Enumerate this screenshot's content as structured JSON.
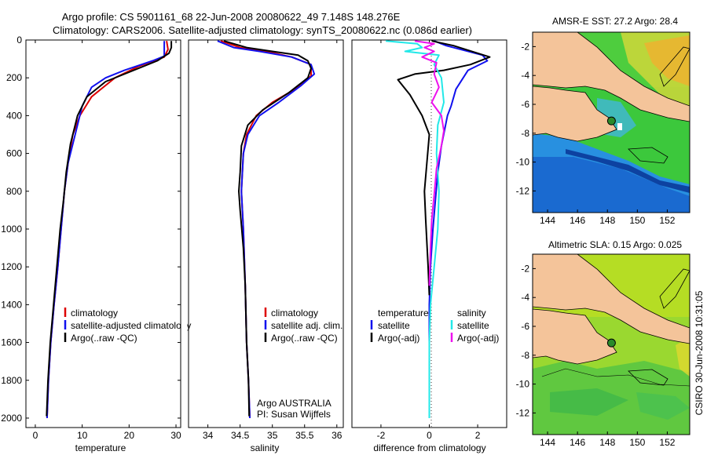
{
  "header": {
    "title_line1": "Argo profile: CS 5901161_68 22-Jun-2008 20080622_49 7.148S 148.276E",
    "title_line2": "Climatology: CARS2006. Satellite-adjusted climatology: synTS_20080622.nc (0.086d earlier)"
  },
  "side_stamp": "CSIRO 30-Jun-2008 10:31:05",
  "colors": {
    "climatology": "#dd0000",
    "satellite": "#1010ee",
    "argo": "#000000",
    "sal_satellite": "#22e8e8",
    "sal_argo": "#ee11ee",
    "land": "#f4c49a"
  },
  "chart_data": [
    {
      "type": "line",
      "xlabel": "temperature",
      "ylabel": "",
      "xlim": [
        -2,
        31
      ],
      "ylim": [
        2050,
        0
      ],
      "xticks": [
        0,
        10,
        20,
        30
      ],
      "yticks": [
        0,
        200,
        400,
        600,
        800,
        1000,
        1200,
        1400,
        1600,
        1800,
        2000
      ],
      "legend": [
        "climatology",
        "satellite-adjusted climatology",
        "Argo(..raw -QC)"
      ],
      "series": [
        {
          "name": "climatology",
          "points": [
            [
              28,
              5
            ],
            [
              28.3,
              50
            ],
            [
              27.5,
              90
            ],
            [
              22,
              140
            ],
            [
              17,
              200
            ],
            [
              12,
              300
            ],
            [
              9.5,
              400
            ],
            [
              8,
              500
            ],
            [
              7,
              650
            ],
            [
              6.2,
              800
            ],
            [
              5.5,
              1000
            ],
            [
              4.8,
              1200
            ],
            [
              4,
              1400
            ],
            [
              3.3,
              1600
            ],
            [
              2.8,
              1800
            ],
            [
              2.5,
              2000
            ]
          ]
        },
        {
          "name": "satellite",
          "points": [
            [
              27.5,
              5
            ],
            [
              27.5,
              85
            ],
            [
              25,
              110
            ],
            [
              19,
              160
            ],
            [
              15,
              200
            ],
            [
              12,
              250
            ],
            [
              10,
              350
            ],
            [
              8.5,
              500
            ],
            [
              7,
              650
            ],
            [
              6.2,
              800
            ],
            [
              5.5,
              1000
            ],
            [
              4.8,
              1200
            ],
            [
              4,
              1400
            ],
            [
              3.3,
              1600
            ],
            [
              2.8,
              1800
            ],
            [
              2.5,
              2000
            ]
          ]
        },
        {
          "name": "argo",
          "points": [
            [
              29,
              5
            ],
            [
              29,
              40
            ],
            [
              28.5,
              70
            ],
            [
              26,
              110
            ],
            [
              20,
              170
            ],
            [
              15,
              220
            ],
            [
              11,
              300
            ],
            [
              9,
              400
            ],
            [
              7.5,
              550
            ],
            [
              6.6,
              700
            ],
            [
              6,
              850
            ],
            [
              5.3,
              1000
            ],
            [
              4.6,
              1200
            ],
            [
              3.9,
              1400
            ],
            [
              3.2,
              1600
            ],
            [
              2.7,
              1800
            ],
            [
              2.4,
              1990
            ]
          ]
        }
      ]
    },
    {
      "type": "line",
      "xlabel": "salinity",
      "xlim": [
        33.7,
        36.1
      ],
      "ylim": [
        2050,
        0
      ],
      "xticks": [
        34,
        34.5,
        35,
        35.5,
        36
      ],
      "legend": [
        "climatology",
        "satellite adj. clim.",
        "Argo(..raw -QC)"
      ],
      "annotation": [
        "Argo AUSTRALIA",
        "PI: Susan Wijffels"
      ],
      "series": [
        {
          "name": "climatology",
          "points": [
            [
              34.2,
              5
            ],
            [
              34.5,
              40
            ],
            [
              34.9,
              60
            ],
            [
              35.3,
              90
            ],
            [
              35.6,
              130
            ],
            [
              35.6,
              190
            ],
            [
              35.35,
              260
            ],
            [
              35.0,
              330
            ],
            [
              34.75,
              400
            ],
            [
              34.6,
              500
            ],
            [
              34.55,
              600
            ],
            [
              34.52,
              800
            ],
            [
              34.55,
              1000
            ],
            [
              34.58,
              1300
            ],
            [
              34.6,
              1600
            ],
            [
              34.63,
              1800
            ],
            [
              34.65,
              2000
            ]
          ]
        },
        {
          "name": "satellite",
          "points": [
            [
              34.15,
              5
            ],
            [
              34.4,
              40
            ],
            [
              34.8,
              60
            ],
            [
              35.3,
              90
            ],
            [
              35.6,
              130
            ],
            [
              35.65,
              180
            ],
            [
              35.45,
              240
            ],
            [
              35.1,
              330
            ],
            [
              34.8,
              400
            ],
            [
              34.62,
              500
            ],
            [
              34.55,
              600
            ],
            [
              34.52,
              800
            ],
            [
              34.55,
              1000
            ],
            [
              34.58,
              1300
            ],
            [
              34.6,
              1600
            ],
            [
              34.63,
              1800
            ],
            [
              34.65,
              2000
            ]
          ]
        },
        {
          "name": "argo",
          "points": [
            [
              34.25,
              5
            ],
            [
              34.6,
              40
            ],
            [
              35.0,
              60
            ],
            [
              35.4,
              80
            ],
            [
              35.55,
              110
            ],
            [
              35.6,
              150
            ],
            [
              35.55,
              200
            ],
            [
              35.25,
              280
            ],
            [
              34.85,
              370
            ],
            [
              34.62,
              450
            ],
            [
              34.52,
              560
            ],
            [
              34.5,
              700
            ],
            [
              34.48,
              800
            ],
            [
              34.5,
              900
            ],
            [
              34.55,
              1100
            ],
            [
              34.58,
              1300
            ],
            [
              34.6,
              1600
            ],
            [
              34.63,
              1800
            ],
            [
              34.64,
              1990
            ]
          ]
        }
      ]
    },
    {
      "type": "line",
      "xlabel": "difference from climatology",
      "xlim": [
        -3.2,
        3.2
      ],
      "ylim": [
        2050,
        0
      ],
      "xticks": [
        -2,
        0,
        2
      ],
      "legend": [
        "temperature",
        "satellite",
        "Argo(-adj)",
        "salinity",
        "satellite",
        "Argo(-adj)"
      ],
      "series": [
        {
          "name": "temperature satellite",
          "points": [
            [
              0.2,
              5
            ],
            [
              0.7,
              30
            ],
            [
              2.2,
              80
            ],
            [
              2.4,
              110
            ],
            [
              1.6,
              160
            ],
            [
              1.1,
              260
            ],
            [
              0.9,
              350
            ],
            [
              0.75,
              400
            ],
            [
              0.5,
              560
            ],
            [
              0.35,
              700
            ],
            [
              0.25,
              850
            ],
            [
              0.15,
              1000
            ],
            [
              0.05,
              1200
            ],
            [
              0,
              1400
            ],
            [
              0,
              2000
            ]
          ]
        },
        {
          "name": "temperature Argo(-adj)",
          "points": [
            [
              0.1,
              5
            ],
            [
              1.0,
              30
            ],
            [
              2.5,
              90
            ],
            [
              1.7,
              130
            ],
            [
              0.6,
              160
            ],
            [
              -0.6,
              180
            ],
            [
              -1.3,
              210
            ],
            [
              -0.8,
              290
            ],
            [
              -0.3,
              400
            ],
            [
              0,
              500
            ],
            [
              -0.1,
              650
            ],
            [
              -0.2,
              800
            ],
            [
              -0.15,
              950
            ],
            [
              -0.05,
              1200
            ],
            [
              0,
              1350
            ]
          ]
        },
        {
          "name": "salinity satellite",
          "points": [
            [
              -1.8,
              5
            ],
            [
              -0.5,
              20
            ],
            [
              -0.3,
              40
            ],
            [
              -1.0,
              60
            ],
            [
              0.4,
              80
            ],
            [
              0.2,
              130
            ],
            [
              0.5,
              200
            ],
            [
              0.6,
              330
            ],
            [
              0.35,
              450
            ],
            [
              0.3,
              600
            ],
            [
              0.4,
              800
            ],
            [
              0.35,
              1000
            ],
            [
              0.2,
              1200
            ],
            [
              0.05,
              1400
            ],
            [
              0,
              1600
            ],
            [
              0,
              2000
            ]
          ]
        },
        {
          "name": "salinity Argo(-adj)",
          "points": [
            [
              -0.6,
              5
            ],
            [
              0.2,
              20
            ],
            [
              -0.2,
              40
            ],
            [
              0.2,
              60
            ],
            [
              -0.3,
              90
            ],
            [
              0.3,
              120
            ],
            [
              0.2,
              180
            ],
            [
              0.4,
              250
            ],
            [
              0.1,
              330
            ],
            [
              0.5,
              400
            ],
            [
              0.6,
              480
            ],
            [
              0.5,
              560
            ],
            [
              0.3,
              680
            ],
            [
              0.2,
              820
            ],
            [
              0.1,
              950
            ],
            [
              0.05,
              1100
            ],
            [
              0,
              1300
            ]
          ]
        }
      ]
    },
    {
      "type": "heatmap",
      "title": "AMSR-E SST: 27.2 Argo: 28.4",
      "xlim": [
        143,
        153.5
      ],
      "ylim": [
        -13.5,
        -1
      ],
      "xticks": [
        144,
        146,
        148,
        150,
        152
      ],
      "yticks": [
        -2,
        -4,
        -6,
        -8,
        -10,
        -12
      ],
      "argo_position": [
        148.27,
        -7.15
      ]
    },
    {
      "type": "heatmap",
      "title": "Altimetric SLA: 0.15 Argo: 0.025",
      "xlim": [
        143,
        153.5
      ],
      "ylim": [
        -13.5,
        -1
      ],
      "xticks": [
        144,
        146,
        148,
        150,
        152
      ],
      "yticks": [
        -2,
        -4,
        -6,
        -8,
        -10,
        -12
      ],
      "argo_position": [
        148.27,
        -7.15
      ]
    }
  ]
}
